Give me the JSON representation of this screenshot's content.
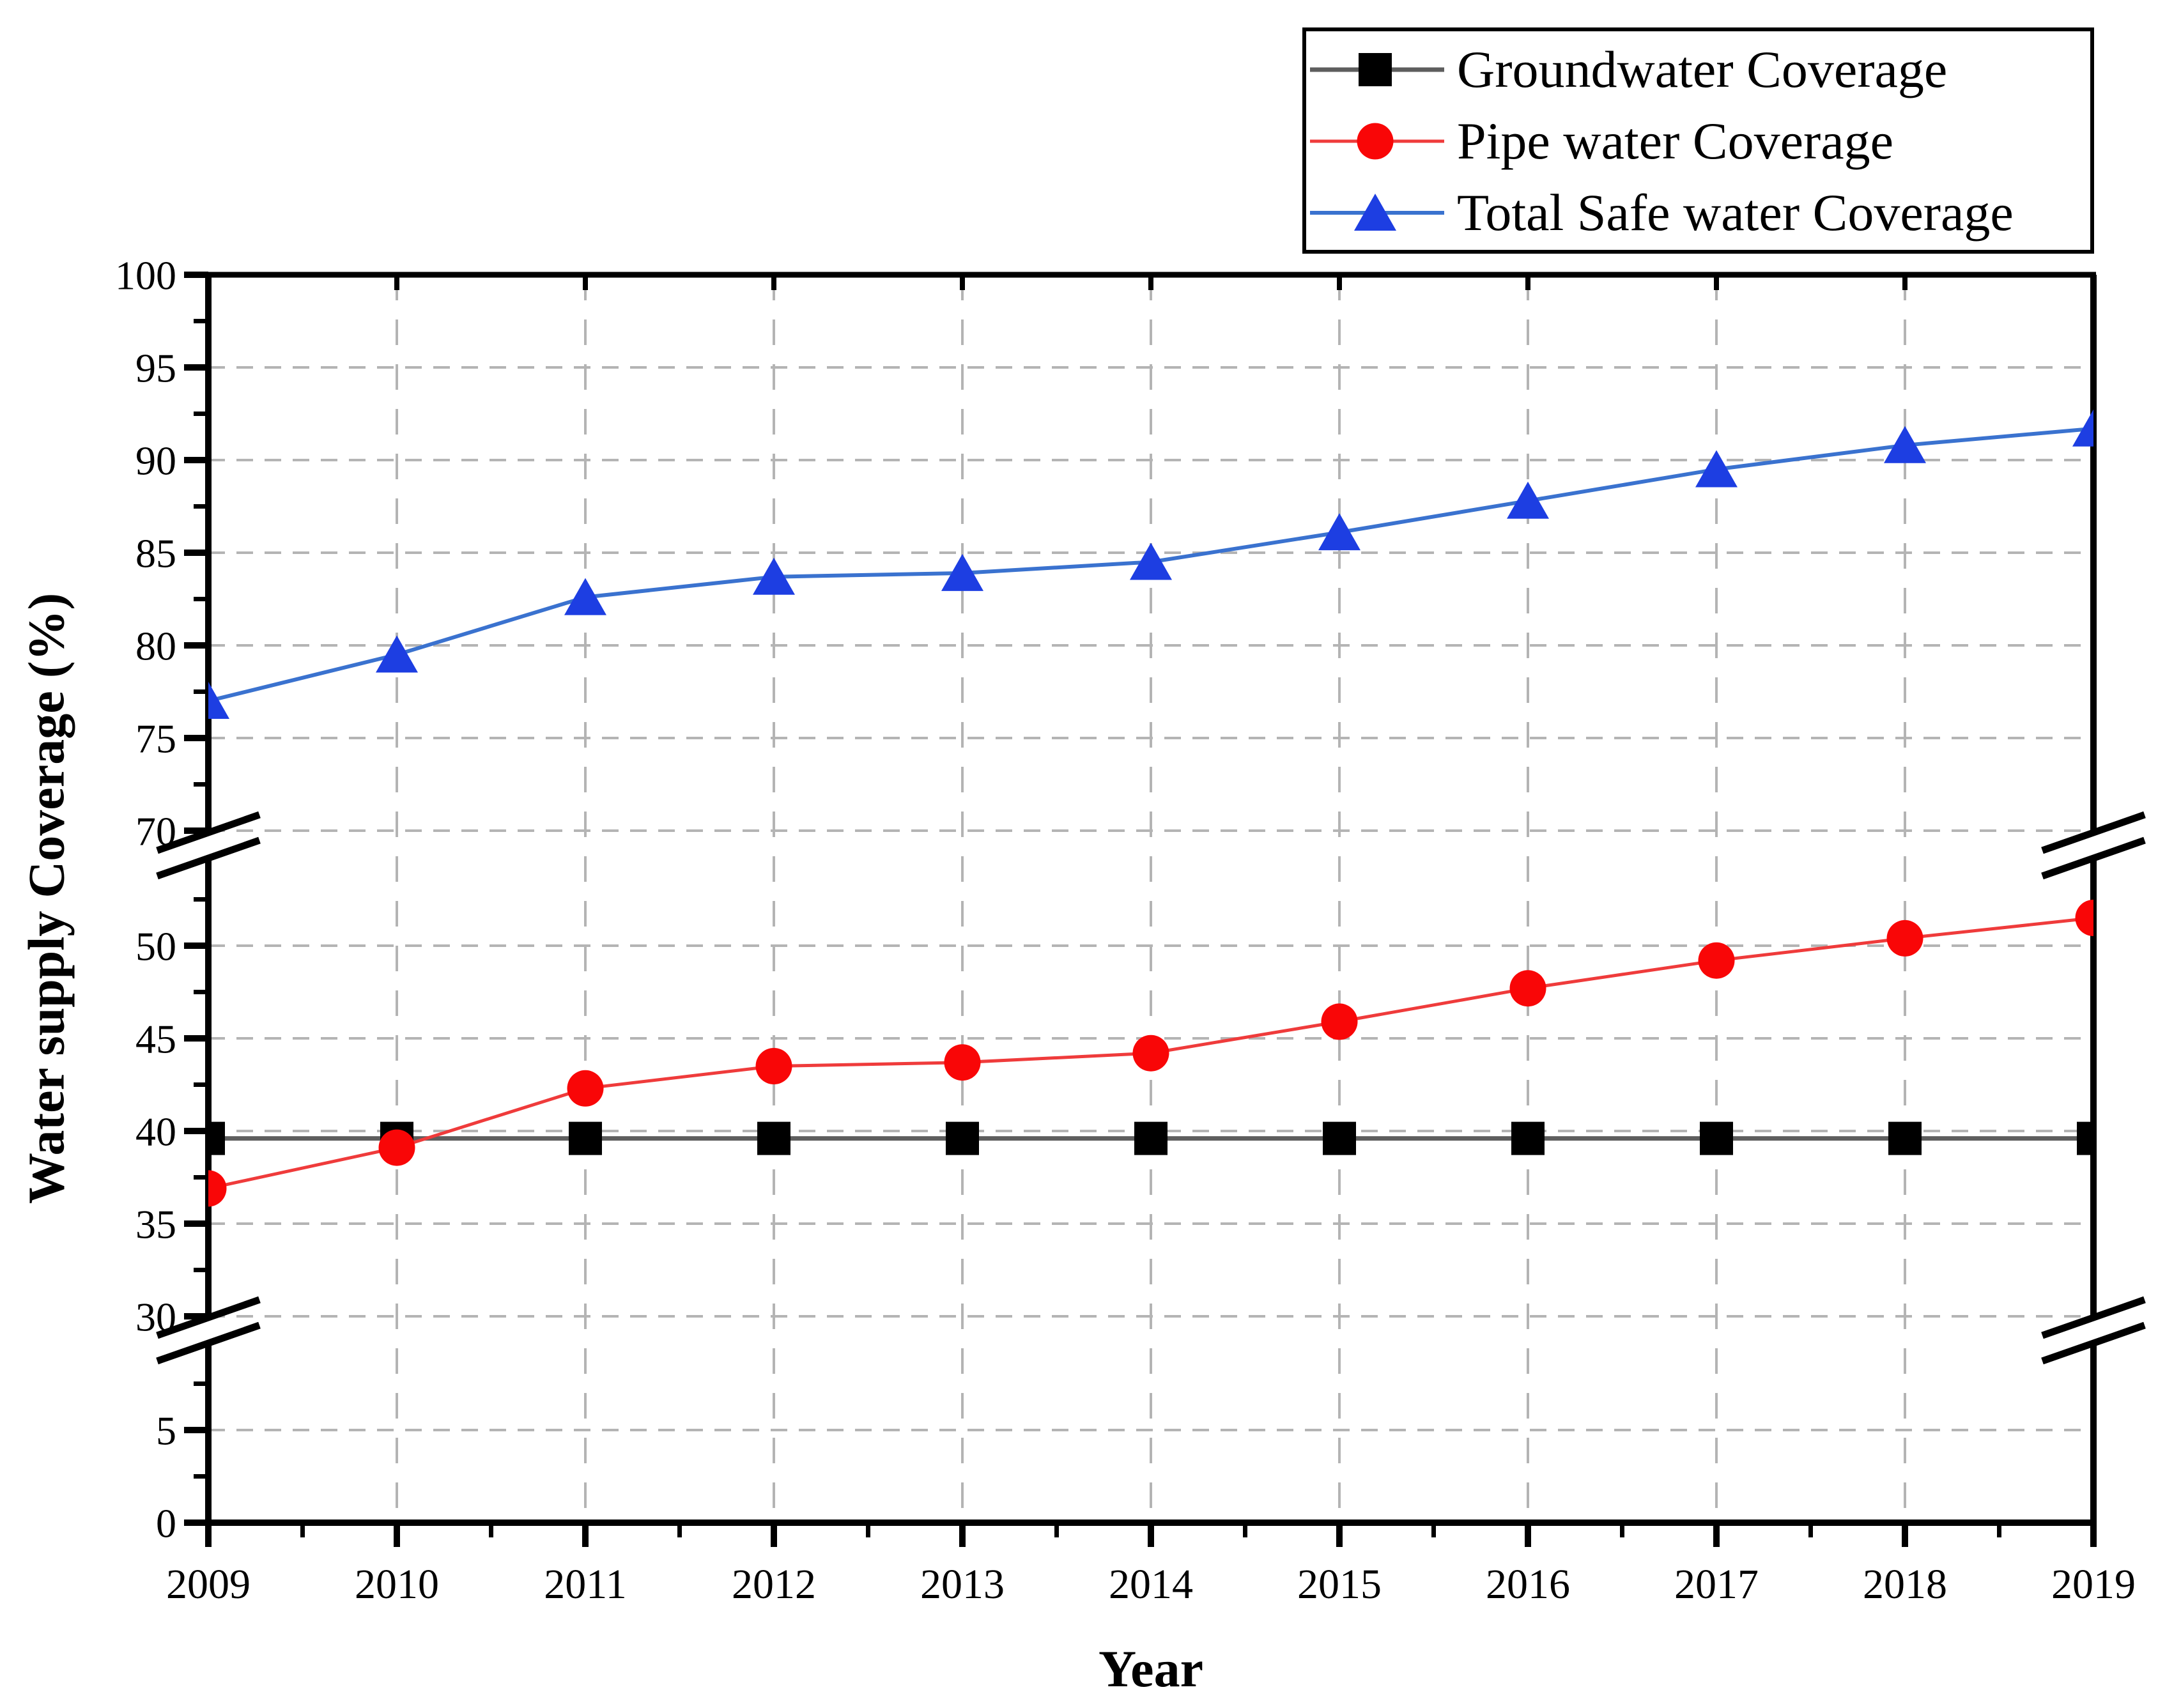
{
  "chart_data": {
    "type": "line",
    "title": "",
    "xlabel": "Year",
    "ylabel": "Water supply Coverage (%)",
    "x": [
      2009,
      2010,
      2011,
      2012,
      2013,
      2014,
      2015,
      2016,
      2017,
      2018,
      2019
    ],
    "series": [
      {
        "name": "Groundwater Coverage",
        "marker": "square",
        "marker_color": "#000000",
        "line_color": "#5e5e5e",
        "line_width": 7,
        "values": [
          39.6,
          39.6,
          39.6,
          39.6,
          39.6,
          39.6,
          39.6,
          39.6,
          39.6,
          39.6,
          39.6
        ]
      },
      {
        "name": "Pipe water Coverage",
        "marker": "circle",
        "marker_color": "#f90607",
        "line_color": "#ef3b3b",
        "line_width": 5,
        "values": [
          36.9,
          39.1,
          42.3,
          43.5,
          43.7,
          44.2,
          45.9,
          47.7,
          49.2,
          50.4,
          51.5
        ]
      },
      {
        "name": "Total Safe water Coverage",
        "marker": "triangle",
        "marker_color": "#1d3ee2",
        "line_color": "#3a72cf",
        "line_width": 6,
        "values": [
          77.0,
          79.5,
          82.6,
          83.7,
          83.9,
          84.5,
          86.1,
          87.8,
          89.5,
          90.8,
          91.7
        ]
      }
    ],
    "x_axis": {
      "tick_labels": [
        "2009",
        "2010",
        "2011",
        "2012",
        "2013",
        "2014",
        "2015",
        "2016",
        "2017",
        "2018",
        "2019"
      ],
      "minor_tick_interval": 0.5
    },
    "y_axis": {
      "unit": "%",
      "segments": [
        {
          "range": [
            0,
            7.5
          ],
          "labeled_ticks": [
            0,
            5
          ],
          "minor_ticks": [
            2.5,
            7.5
          ]
        },
        {
          "range": [
            30,
            52.5
          ],
          "labeled_ticks": [
            30,
            35,
            40,
            45,
            50
          ],
          "minor_ticks": [
            32.5,
            37.5,
            42.5,
            47.5,
            52.5
          ]
        },
        {
          "range": [
            70,
            100
          ],
          "labeled_ticks": [
            70,
            75,
            80,
            85,
            90,
            95,
            100
          ],
          "minor_ticks": [
            72.5,
            77.5,
            82.5,
            87.5,
            92.5,
            97.5
          ]
        }
      ],
      "axis_breaks": [
        {
          "between": [
            52.5,
            70
          ]
        },
        {
          "between": [
            7.5,
            30
          ]
        }
      ],
      "gridline_values": [
        5,
        30,
        35,
        40,
        45,
        50,
        70,
        75,
        80,
        85,
        90,
        95
      ]
    },
    "grid": {
      "show": true,
      "color": "#b4b4b4",
      "style": "dashed"
    },
    "legend": {
      "position": "top-right",
      "border_color": "#000000",
      "background": "#ffffff"
    },
    "frame_color": "#000000",
    "background": "#ffffff"
  }
}
